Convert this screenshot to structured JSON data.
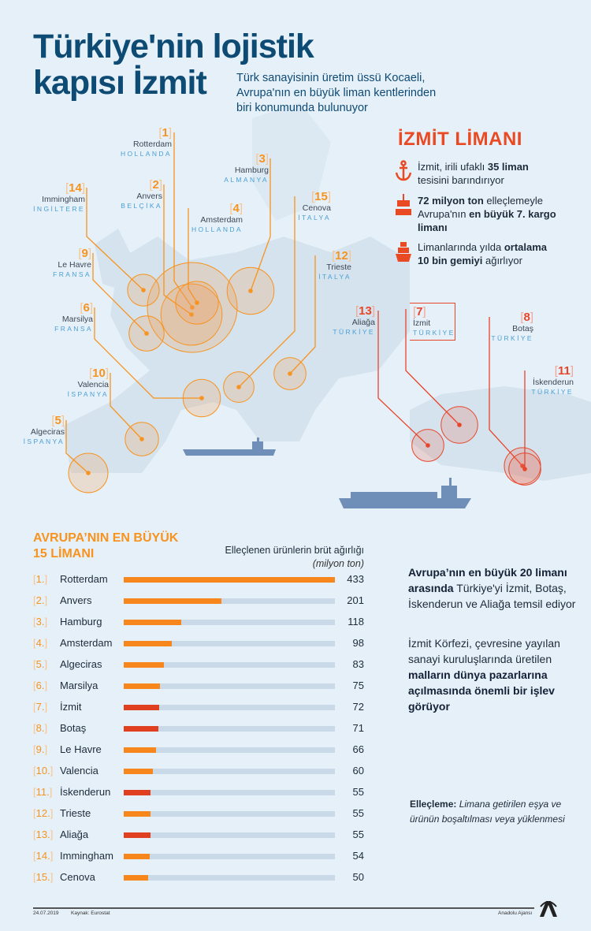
{
  "header": {
    "title_line1": "Türkiye'nin lojistik",
    "title_line2": "kapısı İzmit",
    "subtitle": [
      "Türk sanayisinin üretim üssü Kocaeli,",
      "Avrupa'nın en büyük liman kentlerinden",
      "biri konumunda bulunuyor"
    ]
  },
  "izmit_box": {
    "title": "İZMİT LİMANI",
    "items": [
      {
        "icon": "anchor-icon",
        "parts": [
          {
            "t": "İzmit, irili ufaklı "
          },
          {
            "t": "35 liman",
            "b": true
          },
          {
            "t": " tesisini barındırıyor"
          }
        ]
      },
      {
        "icon": "container-crane-icon",
        "parts": [
          {
            "t": "72 milyon ton",
            "b": true
          },
          {
            "t": " elleçlemeyle Avrupa'nın "
          },
          {
            "t": "en büyük 7. kargo limanı",
            "b": true
          }
        ]
      },
      {
        "icon": "ship-icon",
        "parts": [
          {
            "t": "Limanlarında yılda "
          },
          {
            "t": "ortalama 10 bin gemiyi",
            "b": true
          },
          {
            "t": " ağırlıyor"
          }
        ]
      }
    ]
  },
  "map": {
    "ports": [
      {
        "rank": "1",
        "city": "Rotterdam",
        "country": "HOLLANDA",
        "turkish": false
      },
      {
        "rank": "2",
        "city": "Anvers",
        "country": "BELÇİKA",
        "turkish": false
      },
      {
        "rank": "3",
        "city": "Hamburg",
        "country": "ALMANYA",
        "turkish": false
      },
      {
        "rank": "4",
        "city": "Amsterdam",
        "country": "HOLLANDA",
        "turkish": false
      },
      {
        "rank": "5",
        "city": "Algeciras",
        "country": "İSPANYA",
        "turkish": false
      },
      {
        "rank": "6",
        "city": "Marsilya",
        "country": "FRANSA",
        "turkish": false
      },
      {
        "rank": "7",
        "city": "İzmit",
        "country": "TÜRKİYE",
        "turkish": true
      },
      {
        "rank": "8",
        "city": "Botaş",
        "country": "TÜRKİYE",
        "turkish": true
      },
      {
        "rank": "9",
        "city": "Le Havre",
        "country": "FRANSA",
        "turkish": false
      },
      {
        "rank": "10",
        "city": "Valencia",
        "country": "İSPANYA",
        "turkish": false
      },
      {
        "rank": "11",
        "city": "İskenderun",
        "country": "TÜRKİYE",
        "turkish": true
      },
      {
        "rank": "12",
        "city": "Trieste",
        "country": "İTALYA",
        "turkish": false
      },
      {
        "rank": "13",
        "city": "Aliağa",
        "country": "TÜRKİYE",
        "turkish": true
      },
      {
        "rank": "14",
        "city": "Immingham",
        "country": "İNGİLTERE",
        "turkish": false
      },
      {
        "rank": "15",
        "city": "Cenova",
        "country": "İTALYA",
        "turkish": false
      }
    ]
  },
  "chart_data": {
    "type": "bar",
    "title_line1": "AVRUPA’NIN EN BÜYÜK",
    "title_line2": "15 LİMANI",
    "ylabel": "Elleçlenen ürünlerin brüt ağırlığı",
    "unit": "(milyon ton)",
    "categories": [
      "Rotterdam",
      "Anvers",
      "Hamburg",
      "Amsterdam",
      "Algeciras",
      "Marsilya",
      "İzmit",
      "Botaş",
      "Le Havre",
      "Valencia",
      "İskenderun",
      "Trieste",
      "Aliağa",
      "Immingham",
      "Cenova"
    ],
    "ranks": [
      "1",
      "2",
      "3",
      "4",
      "5",
      "6",
      "7",
      "8",
      "9",
      "10",
      "11",
      "12",
      "13",
      "14",
      "15"
    ],
    "values": [
      433,
      201,
      118,
      98,
      83,
      75,
      72,
      71,
      66,
      60,
      55,
      55,
      55,
      54,
      50
    ],
    "turkish": [
      false,
      false,
      false,
      false,
      false,
      false,
      true,
      true,
      false,
      false,
      true,
      false,
      true,
      false,
      false
    ],
    "xlim": [
      0,
      433
    ],
    "colors": {
      "default": "#f7861c",
      "turkish": "#e0401f",
      "track": "#c9d9e7"
    }
  },
  "side_text": {
    "p1": [
      {
        "t": "Avrupa’nın en büyük 20 limanı arasında",
        "b": true
      },
      {
        "t": " Türkiye'yi İzmit, Botaş, İskenderun ve Aliağa temsil ediyor"
      }
    ],
    "p2": [
      {
        "t": "İzmit Körfezi, çevresine yayılan sanayi kuruluşlarında üretilen "
      },
      {
        "t": "malların dünya pazarlarına açılmasında önemli bir işlev görüyor",
        "b": true
      }
    ]
  },
  "definition": {
    "term": "Elleçleme:",
    "text": "Limana getirilen eşya ve ürünün boşaltılması veya yüklenmesi"
  },
  "footer": {
    "date": "24.07.2019",
    "source": "Kaynak: Eurostat",
    "agency": "Anadolu Ajansı",
    "logo": "AA"
  }
}
